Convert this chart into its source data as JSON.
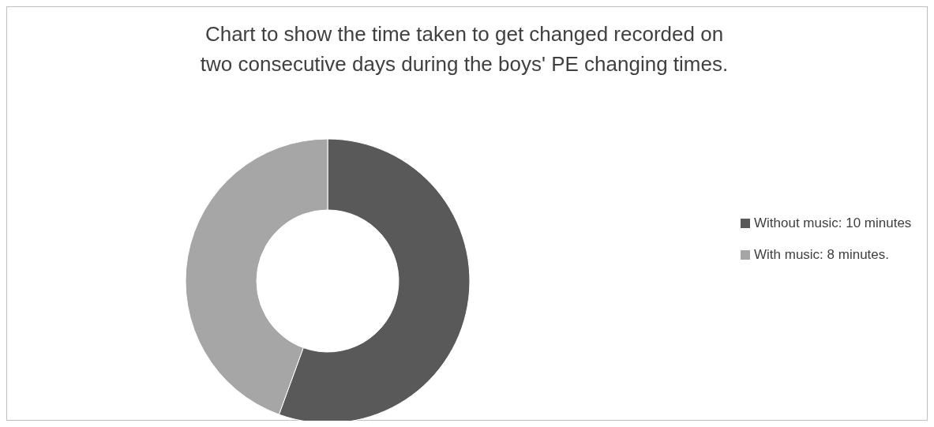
{
  "chart_data": {
    "type": "donut",
    "title": "Chart to show the time taken to get changed recorded on two consecutive days during the boys' PE changing times.",
    "categories": [
      "Without music: 10 minutes",
      "With music: 8 minutes."
    ],
    "values": [
      10,
      8
    ],
    "colors": [
      "#595959",
      "#a6a6a6"
    ],
    "legend": "right"
  }
}
